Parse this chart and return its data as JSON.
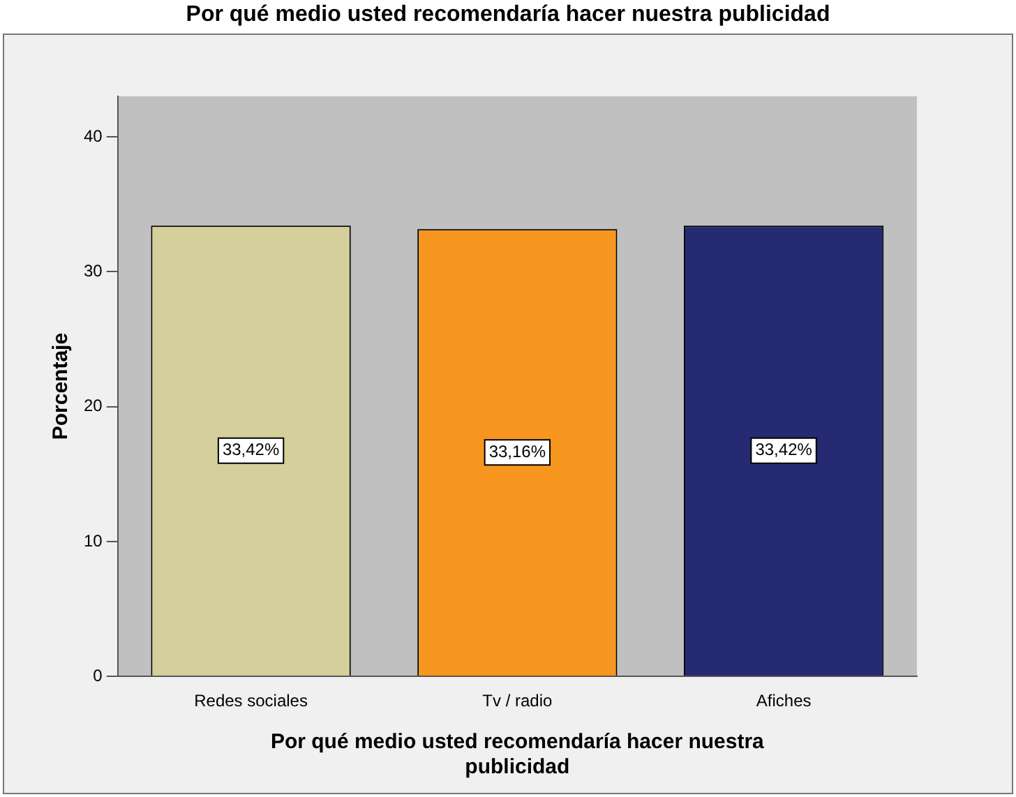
{
  "chart_data": {
    "type": "bar",
    "title": "Por qué medio usted recomendaría hacer nuestra publicidad",
    "xlabel": "Por qué medio usted recomendaría hacer nuestra publicidad",
    "ylabel": "Porcentaje",
    "categories": [
      "Redes sociales",
      "Tv / radio",
      "Afiches"
    ],
    "values": [
      33.42,
      33.16,
      33.42
    ],
    "colors": [
      "#d4cf9b",
      "#f7961e",
      "#262a72"
    ],
    "value_labels": [
      "33,42%",
      "33,16%",
      "33,42%"
    ],
    "ylim": [
      0,
      43
    ],
    "yticks": [
      0,
      10,
      20,
      30,
      40
    ],
    "grid": false,
    "legend": false
  }
}
